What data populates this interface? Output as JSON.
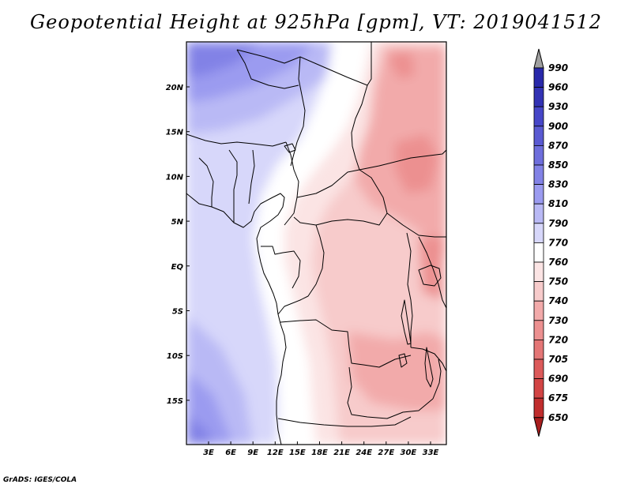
{
  "title": "Geopotential Height at 925hPa [gpm], VT: 2019041512",
  "credit": "GrADS: IGES/COLA",
  "map": {
    "lat_labels": [
      "20N",
      "15N",
      "10N",
      "5N",
      "EQ",
      "5S",
      "10S",
      "15S"
    ],
    "lon_labels": [
      "3E",
      "6E",
      "9E",
      "12E",
      "15E",
      "18E",
      "21E",
      "24E",
      "27E",
      "30E",
      "33E"
    ]
  },
  "colorbar": {
    "levels": [
      "990",
      "960",
      "930",
      "900",
      "870",
      "850",
      "830",
      "810",
      "790",
      "770",
      "760",
      "750",
      "740",
      "730",
      "720",
      "705",
      "690",
      "675",
      "650"
    ],
    "colors": {
      "top_triangle": "#a0a0a0",
      "above_990": "#1e1ea0",
      "990_960": "#2828aa",
      "960_930": "#3232b4",
      "930_900": "#4646c8",
      "900_870": "#5a5ad2",
      "870_850": "#6e6edc",
      "850_830": "#8282e6",
      "830_810": "#9b9bf0",
      "810_790": "#b9b9f5",
      "790_770": "#d7d7fa",
      "770_760": "#ffffff",
      "760_750": "#fbe4e4",
      "750_740": "#f7cbcb",
      "740_730": "#f2aaaa",
      "730_720": "#ec9090",
      "720_705": "#e47676",
      "705_690": "#dc5a5a",
      "690_675": "#d24444",
      "675_650": "#c02d2d",
      "below_650": "#a81e1e"
    }
  }
}
